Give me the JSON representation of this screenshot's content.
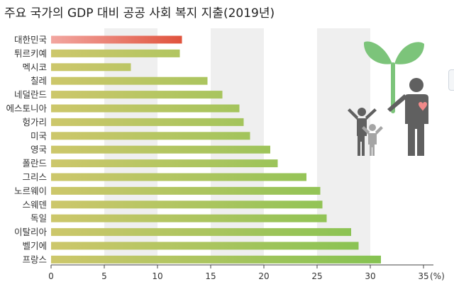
{
  "title": "주요 국가의 GDP 대비 공공 사회 복지 지출(2019년)",
  "chart_data": {
    "type": "bar",
    "orientation": "horizontal",
    "title": "주요 국가의 GDP 대비 공공 사회 복지 지출(2019년)",
    "categories": [
      "대한민국",
      "튀르키예",
      "멕시코",
      "칠레",
      "네덜란드",
      "에스토니아",
      "헝가리",
      "미국",
      "영국",
      "폴란드",
      "그리스",
      "노르웨이",
      "스웨덴",
      "독일",
      "이탈리아",
      "벨기에",
      "프랑스"
    ],
    "values": [
      12.3,
      12.1,
      7.5,
      14.7,
      16.1,
      17.7,
      18.1,
      18.7,
      20.6,
      21.3,
      24.0,
      25.3,
      25.5,
      25.9,
      28.2,
      28.9,
      31.0
    ],
    "xlim": [
      0,
      35
    ],
    "xticks": [
      0,
      5,
      10,
      15,
      20,
      25,
      30,
      35
    ],
    "xtick_labels": [
      "0",
      "5",
      "10",
      "15",
      "20",
      "25",
      "30",
      "35"
    ],
    "unit_label": "(%)",
    "grid": "alternating vertical bands",
    "colors": {
      "highlight_start": "#f2a6a0",
      "highlight_end": "#e0533d",
      "bar_start": "#cdc76b",
      "bar_end": "#7cc24e",
      "band": "#efefef"
    }
  },
  "illustration": {
    "name": "people-with-plant-icon",
    "colors": {
      "plant": "#7cc47a",
      "person": "#606060",
      "heart": "#f18a8a",
      "child": "#a5a5a5"
    }
  }
}
